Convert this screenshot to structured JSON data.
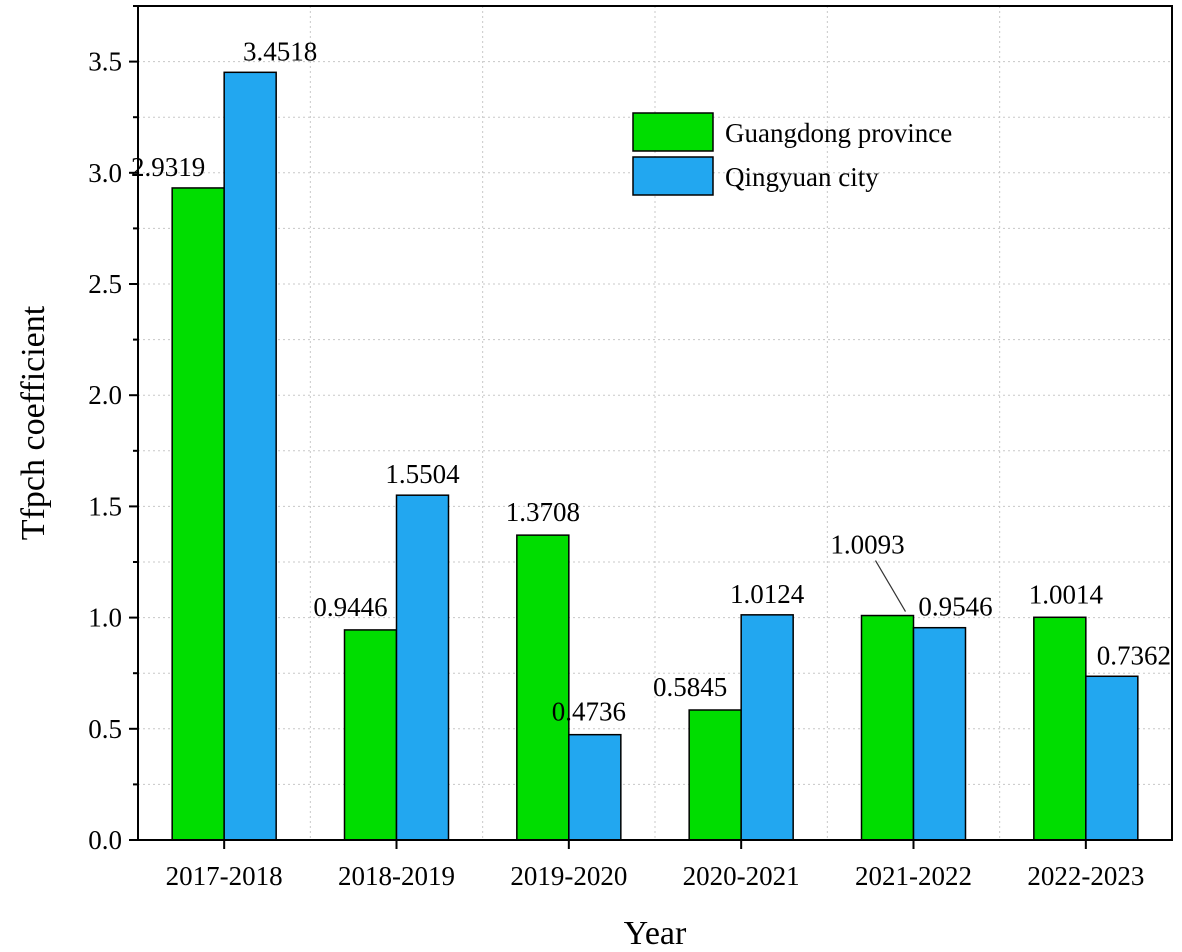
{
  "chart_data": {
    "type": "bar",
    "xlabel": "Year",
    "ylabel": "Tfpch coefficient",
    "ylim": [
      0,
      3.75
    ],
    "yticks": [
      "0.0",
      "0.5",
      "1.0",
      "1.5",
      "2.0",
      "2.5",
      "3.0",
      "3.5"
    ],
    "grid": true,
    "legend_position": "top-right",
    "categories": [
      "2017-2018",
      "2018-2019",
      "2019-2020",
      "2020-2021",
      "2021-2022",
      "2022-2023"
    ],
    "series": [
      {
        "name": "Guangdong province",
        "color": "#00dd00",
        "values": [
          2.9319,
          0.9446,
          1.3708,
          0.5845,
          1.0093,
          1.0014
        ],
        "labels": [
          "2.9319",
          "0.9446",
          "1.3708",
          "0.5845",
          "1.0093",
          "1.0014"
        ]
      },
      {
        "name": "Qingyuan city",
        "color": "#22a7f0",
        "values": [
          3.4518,
          1.5504,
          0.4736,
          1.0124,
          0.9546,
          0.7362
        ],
        "labels": [
          "3.4518",
          "1.5504",
          "0.4736",
          "1.0124",
          "0.9546",
          "0.7362"
        ]
      }
    ]
  }
}
